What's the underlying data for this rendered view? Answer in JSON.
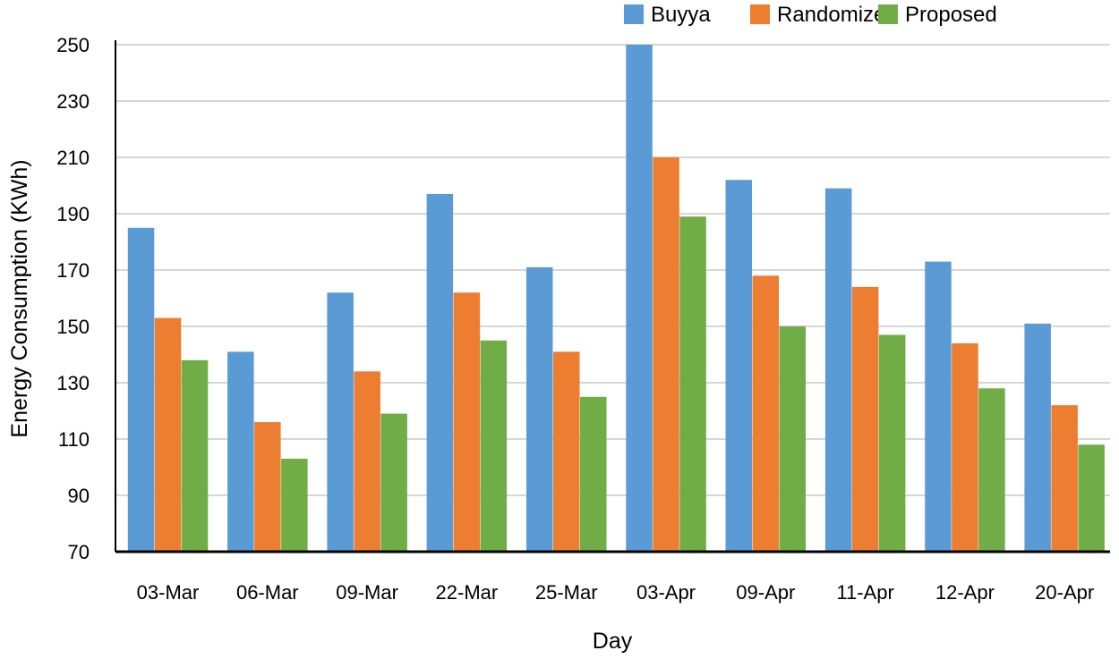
{
  "chart_data": {
    "type": "bar",
    "title": "",
    "xlabel": "Day",
    "ylabel": "Energy Consumption (KWh)",
    "ylim": [
      70,
      250
    ],
    "yticks": [
      70,
      90,
      110,
      130,
      150,
      170,
      190,
      210,
      230,
      250
    ],
    "grid": true,
    "legend_position": "top-right",
    "categories": [
      "03-Mar",
      "06-Mar",
      "09-Mar",
      "22-Mar",
      "25-Mar",
      "03-Apr",
      "09-Apr",
      "11-Apr",
      "12-Apr",
      "20-Apr"
    ],
    "series": [
      {
        "name": "Buyya",
        "color": "#5B9BD5",
        "values": [
          185,
          141,
          162,
          197,
          171,
          250,
          202,
          199,
          173,
          151
        ]
      },
      {
        "name": "Randomized",
        "color": "#ED7D31",
        "values": [
          153,
          116,
          134,
          162,
          141,
          210,
          168,
          164,
          144,
          122
        ]
      },
      {
        "name": "Proposed",
        "color": "#70AD47",
        "values": [
          138,
          103,
          119,
          145,
          125,
          189,
          150,
          147,
          128,
          108
        ]
      }
    ]
  }
}
